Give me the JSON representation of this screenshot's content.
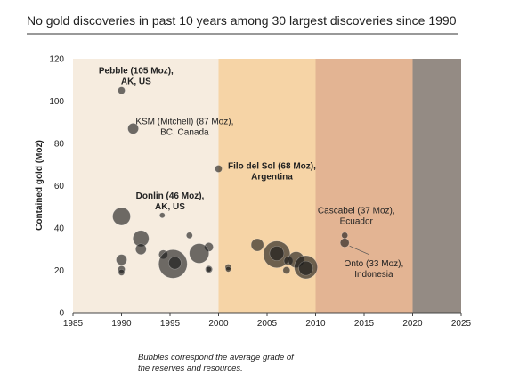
{
  "chart_data": {
    "type": "scatter",
    "title": "No gold discoveries in past 10 years among 30 largest discoveries since 1990",
    "xlabel": "",
    "ylabel": "Contained gold (Moz)",
    "xlim": [
      1985,
      2025
    ],
    "ylim": [
      0,
      120
    ],
    "xticks": [
      "1985",
      "1990",
      "1995",
      "2000",
      "2005",
      "2010",
      "2015",
      "2020",
      "2025"
    ],
    "yticks": [
      "0",
      "20",
      "40",
      "60",
      "80",
      "100",
      "120"
    ],
    "grid": false,
    "bands": [
      {
        "from": 1985,
        "to": 2000,
        "color": "#f6ecdf"
      },
      {
        "from": 2000,
        "to": 2010,
        "color": "#f6d4a6"
      },
      {
        "from": 2010,
        "to": 2020,
        "color": "#e3b493"
      },
      {
        "from": 2020,
        "to": 2025,
        "color": "#948b84"
      }
    ],
    "points": [
      {
        "x": 1990.0,
        "y": 105,
        "r": 4
      },
      {
        "x": 1991.2,
        "y": 87,
        "r": 6
      },
      {
        "x": 2000.0,
        "y": 68,
        "r": 4
      },
      {
        "x": 1994.2,
        "y": 46,
        "r": 3
      },
      {
        "x": 1990.0,
        "y": 45.5,
        "r": 10
      },
      {
        "x": 2013.0,
        "y": 36.5,
        "r": 3.5
      },
      {
        "x": 2013.0,
        "y": 33,
        "r": 5
      },
      {
        "x": 1997.0,
        "y": 36.5,
        "r": 3.5
      },
      {
        "x": 1992.0,
        "y": 35,
        "r": 9
      },
      {
        "x": 1992.0,
        "y": 30,
        "r": 6
      },
      {
        "x": 1999.0,
        "y": 31,
        "r": 5
      },
      {
        "x": 1994.3,
        "y": 27.5,
        "r": 5
      },
      {
        "x": 1990.0,
        "y": 25,
        "r": 6
      },
      {
        "x": 1998.0,
        "y": 28,
        "r": 11
      },
      {
        "x": 1990.0,
        "y": 20.5,
        "r": 4
      },
      {
        "x": 1990.0,
        "y": 19,
        "r": 3.5
      },
      {
        "x": 1995.3,
        "y": 23,
        "r": 16
      },
      {
        "x": 1995.5,
        "y": 23.5,
        "r": 7
      },
      {
        "x": 1999.0,
        "y": 20.5,
        "r": 4
      },
      {
        "x": 1999.0,
        "y": 20.5,
        "r": 3
      },
      {
        "x": 2001.0,
        "y": 21.5,
        "r": 3.5
      },
      {
        "x": 2001.0,
        "y": 20.5,
        "r": 3
      },
      {
        "x": 2004.0,
        "y": 32,
        "r": 7
      },
      {
        "x": 2006.0,
        "y": 27.5,
        "r": 15
      },
      {
        "x": 2006.0,
        "y": 28,
        "r": 8
      },
      {
        "x": 2007.2,
        "y": 24.5,
        "r": 5
      },
      {
        "x": 2008.0,
        "y": 25,
        "r": 9
      },
      {
        "x": 2007.0,
        "y": 20,
        "r": 4
      },
      {
        "x": 2009.0,
        "y": 21.5,
        "r": 13
      },
      {
        "x": 2009.0,
        "y": 21,
        "r": 8
      }
    ],
    "annotations": [
      {
        "lines": [
          "Pebble (105 Moz),",
          "AK, US"
        ],
        "anchor_x": 1991.5,
        "anchor_y": 113,
        "align": "middle",
        "bold": true
      },
      {
        "lines": [
          "KSM (Mitchell) (87 Moz),",
          "BC, Canada"
        ],
        "anchor_x": 1996.5,
        "anchor_y": 89,
        "align": "middle",
        "bold": false
      },
      {
        "lines": [
          "Filo del Sol (68 Moz),",
          "Argentina"
        ],
        "anchor_x": 2005.5,
        "anchor_y": 68,
        "align": "middle",
        "bold": true
      },
      {
        "lines": [
          "Donlin (46 Moz),",
          "AK, US"
        ],
        "anchor_x": 1995.0,
        "anchor_y": 54,
        "align": "middle",
        "bold": true
      },
      {
        "lines": [
          "Cascabel (37 Moz),",
          "Ecuador"
        ],
        "anchor_x": 2014.2,
        "anchor_y": 47,
        "align": "middle",
        "bold": false
      },
      {
        "lines": [
          "Onto (33 Moz),",
          "Indonesia"
        ],
        "anchor_x": 2016.0,
        "anchor_y": 22,
        "align": "middle",
        "bold": false
      }
    ],
    "leader_lines": [
      {
        "x1": 2013.5,
        "y1": 31.5,
        "x2": 2015.5,
        "y2": 27.5
      }
    ],
    "caption": [
      "Bubbles correspond the average grade of",
      "the reserves and resources."
    ]
  }
}
